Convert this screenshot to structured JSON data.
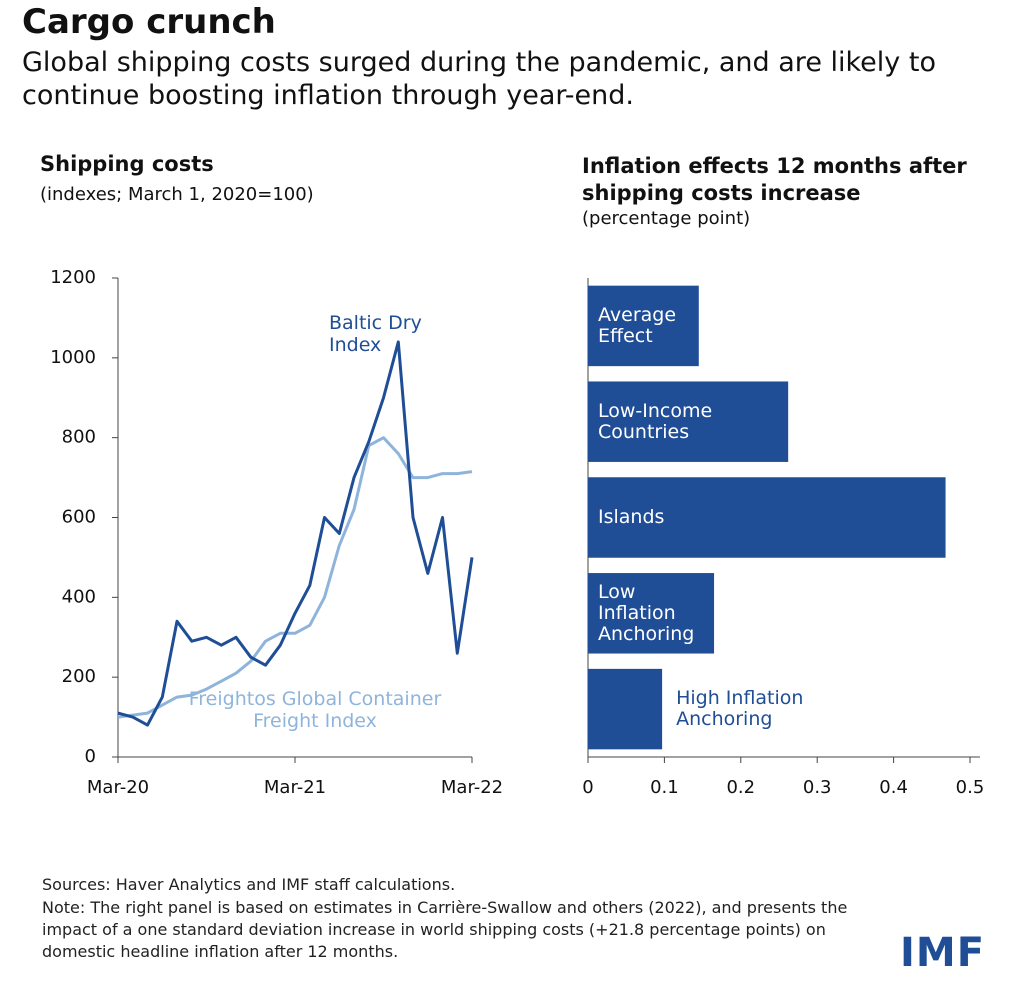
{
  "title": "Cargo crunch",
  "subtitle": "Global shipping costs surged during the pandemic, and are likely to continue boosting inflation through year-end.",
  "chart_data": [
    {
      "type": "line",
      "title": "Shipping costs",
      "subtitle": "(indexes; March 1, 2020=100)",
      "x": [
        "2020-03",
        "2020-04",
        "2020-05",
        "2020-06",
        "2020-07",
        "2020-08",
        "2020-09",
        "2020-10",
        "2020-11",
        "2020-12",
        "2021-01",
        "2021-02",
        "2021-03",
        "2021-04",
        "2021-05",
        "2021-06",
        "2021-07",
        "2021-08",
        "2021-09",
        "2021-10",
        "2021-11",
        "2021-12",
        "2022-01",
        "2022-02",
        "2022-03"
      ],
      "xlim": [
        "2020-03",
        "2022-03"
      ],
      "xticks": [
        {
          "value": "2020-03",
          "label": "Mar-20"
        },
        {
          "value": "2021-03",
          "label": "Mar-21"
        },
        {
          "value": "2022-03",
          "label": "Mar-22"
        }
      ],
      "ylim": [
        0,
        1200
      ],
      "yticks": [
        0,
        200,
        400,
        600,
        800,
        1000,
        1200
      ],
      "series": [
        {
          "name": "Baltic Dry Index",
          "color": "#1f4e96",
          "values": [
            110,
            100,
            80,
            150,
            340,
            290,
            300,
            280,
            300,
            250,
            230,
            280,
            360,
            430,
            600,
            560,
            700,
            790,
            900,
            1040,
            600,
            460,
            600,
            260,
            500
          ]
        },
        {
          "name": "Freightos Global Container Freight Index",
          "color": "#8fb4dc",
          "values": [
            100,
            105,
            110,
            130,
            150,
            155,
            170,
            190,
            210,
            240,
            290,
            310,
            310,
            330,
            400,
            530,
            620,
            780,
            800,
            760,
            700,
            700,
            710,
            710,
            715
          ]
        }
      ]
    },
    {
      "type": "bar",
      "title": "Inflation effects 12 months after shipping costs increase",
      "subtitle": "(percentage point)",
      "categories": [
        "Average Effect",
        "Low-Income Countries",
        "Islands",
        "Low Inflation Anchoring",
        "High Inflation Anchoring"
      ],
      "values": [
        0.145,
        0.262,
        0.468,
        0.165,
        0.097
      ],
      "color": "#1f4e96",
      "xlim": [
        0,
        0.5
      ],
      "xticks": [
        0,
        0.1,
        0.2,
        0.3,
        0.4,
        0.5
      ]
    }
  ],
  "sources": "Sources: Haver Analytics and IMF staff calculations.",
  "note": "Note: The right panel is based on estimates in Carrière-Swallow and others (2022), and presents the impact of a one standard deviation increase in world shipping costs (+21.8 percentage points) on domestic headline inflation after 12 months.",
  "logo": "IMF"
}
